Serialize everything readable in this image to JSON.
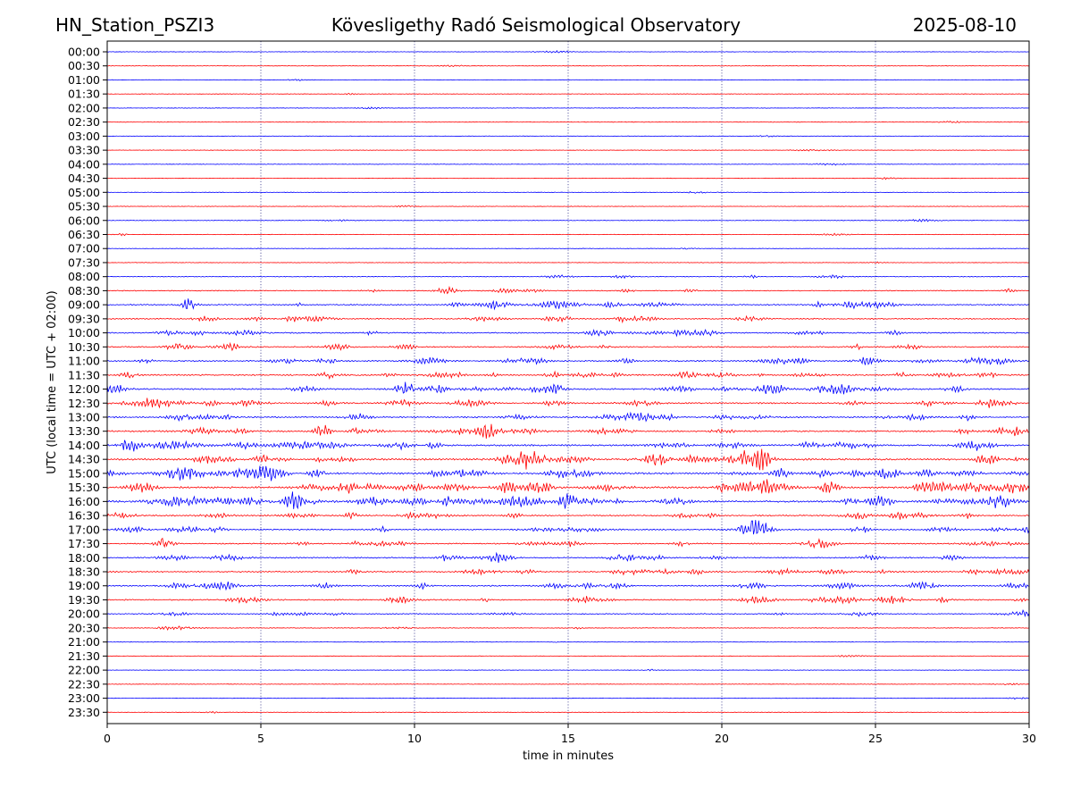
{
  "header": {
    "station": "HN_Station_PSZI3",
    "observatory": "Kövesligethy Radó Seismological Observatory",
    "date": "2025-08-10"
  },
  "chart_data": {
    "type": "line",
    "title": "Kövesligethy Radó Seismological Observatory",
    "xlabel": "time in minutes",
    "ylabel": "UTC (local time = UTC + 02:00)",
    "xlim": [
      0,
      30
    ],
    "xticks": [
      "0",
      "5",
      "10",
      "15",
      "20",
      "25",
      "30"
    ],
    "x_tick_values": [
      0,
      5,
      10,
      15,
      20,
      25,
      30
    ],
    "grid": "vertical dotted lines at each x tick",
    "trace_colors": [
      "#0000ff",
      "#ff0000"
    ],
    "rows": [
      "00:00",
      "00:30",
      "01:00",
      "01:30",
      "02:00",
      "02:30",
      "03:00",
      "03:30",
      "04:00",
      "04:30",
      "05:00",
      "05:30",
      "06:00",
      "06:30",
      "07:00",
      "07:30",
      "08:00",
      "08:30",
      "09:00",
      "09:30",
      "10:00",
      "10:30",
      "11:00",
      "11:30",
      "12:00",
      "12:30",
      "13:00",
      "13:30",
      "14:00",
      "14:30",
      "15:00",
      "15:30",
      "16:00",
      "16:30",
      "17:00",
      "17:30",
      "18:00",
      "18:30",
      "19:00",
      "19:30",
      "20:00",
      "20:30",
      "21:00",
      "21:30",
      "22:00",
      "22:30",
      "23:00",
      "23:30"
    ],
    "activity": [
      0.05,
      0.05,
      0.05,
      0.05,
      0.05,
      0.05,
      0.05,
      0.05,
      0.05,
      0.05,
      0.05,
      0.05,
      0.08,
      0.06,
      0.05,
      0.05,
      0.2,
      0.3,
      0.5,
      0.45,
      0.5,
      0.45,
      0.55,
      0.6,
      0.65,
      0.6,
      0.6,
      0.65,
      0.75,
      0.9,
      0.85,
      0.9,
      0.95,
      0.55,
      0.55,
      0.5,
      0.5,
      0.5,
      0.55,
      0.5,
      0.35,
      0.15,
      0.05,
      0.05,
      0.05,
      0.05,
      0.05,
      0.05
    ],
    "events": [
      {
        "row": "09:00",
        "minute": 2.6
      },
      {
        "row": "12:00",
        "minute": 9.7
      },
      {
        "row": "13:30",
        "minute": 7.0
      },
      {
        "row": "14:00",
        "minute": 0.7
      },
      {
        "row": "14:30",
        "minute": 21.3
      },
      {
        "row": "15:30",
        "minute": 7.8
      },
      {
        "row": "15:30",
        "minute": 23.5
      },
      {
        "row": "16:00",
        "minute": 6.1
      },
      {
        "row": "16:00",
        "minute": 14.9
      },
      {
        "row": "17:00",
        "minute": 21.2
      },
      {
        "row": "17:30",
        "minute": 1.8
      }
    ]
  }
}
